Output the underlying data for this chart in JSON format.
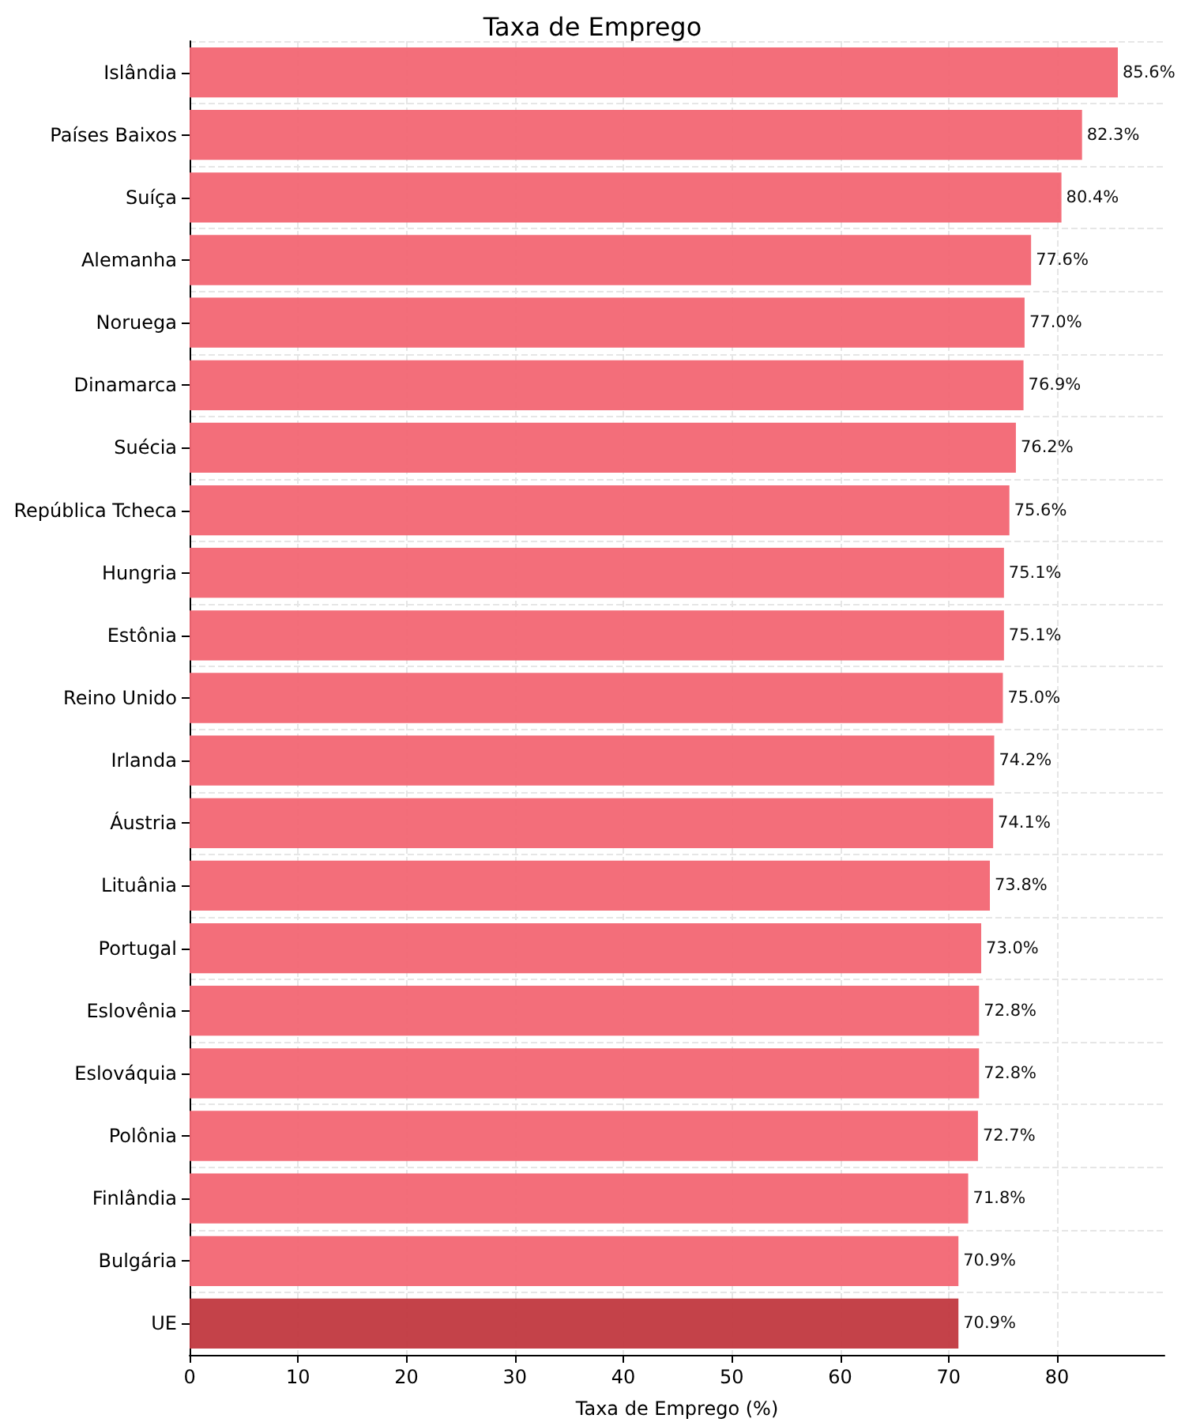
{
  "chart_data": {
    "type": "bar",
    "orientation": "horizontal",
    "title": "Taxa de Emprego",
    "xlabel": "Taxa de Emprego (%)",
    "categories": [
      "Islândia",
      "Países Baixos",
      "Suíça",
      "Alemanha",
      "Noruega",
      "Dinamarca",
      "Suécia",
      "República Tcheca",
      "Hungria",
      "Estônia",
      "Reino Unido",
      "Irlanda",
      "Áustria",
      "Lituânia",
      "Portugal",
      "Eslovênia",
      "Eslováquia",
      "Polônia",
      "Finlândia",
      "Bulgária",
      "UE"
    ],
    "values": [
      85.6,
      82.3,
      80.4,
      77.6,
      77.0,
      76.9,
      76.2,
      75.6,
      75.1,
      75.1,
      75.0,
      74.2,
      74.1,
      73.8,
      73.0,
      72.8,
      72.8,
      72.7,
      71.8,
      70.9,
      70.9
    ],
    "value_labels": [
      "85.6%",
      "82.3%",
      "80.4%",
      "77.6%",
      "77.0%",
      "76.9%",
      "76.2%",
      "75.6%",
      "75.1%",
      "75.1%",
      "75.0%",
      "74.2%",
      "74.1%",
      "73.8%",
      "73.0%",
      "72.8%",
      "72.8%",
      "72.7%",
      "71.8%",
      "70.9%",
      "70.9%"
    ],
    "colors": [
      "#f26673",
      "#f26673",
      "#f26673",
      "#f26673",
      "#f26673",
      "#f26673",
      "#f26673",
      "#f26673",
      "#f26673",
      "#f26673",
      "#f26673",
      "#f26673",
      "#f26673",
      "#f26673",
      "#f26673",
      "#f26673",
      "#f26673",
      "#f26673",
      "#f26673",
      "#f26673",
      "#c1383f"
    ],
    "xlim": [
      0,
      89.9
    ],
    "xticks": [
      0,
      10,
      20,
      30,
      40,
      50,
      60,
      70,
      80
    ],
    "grid": true
  }
}
